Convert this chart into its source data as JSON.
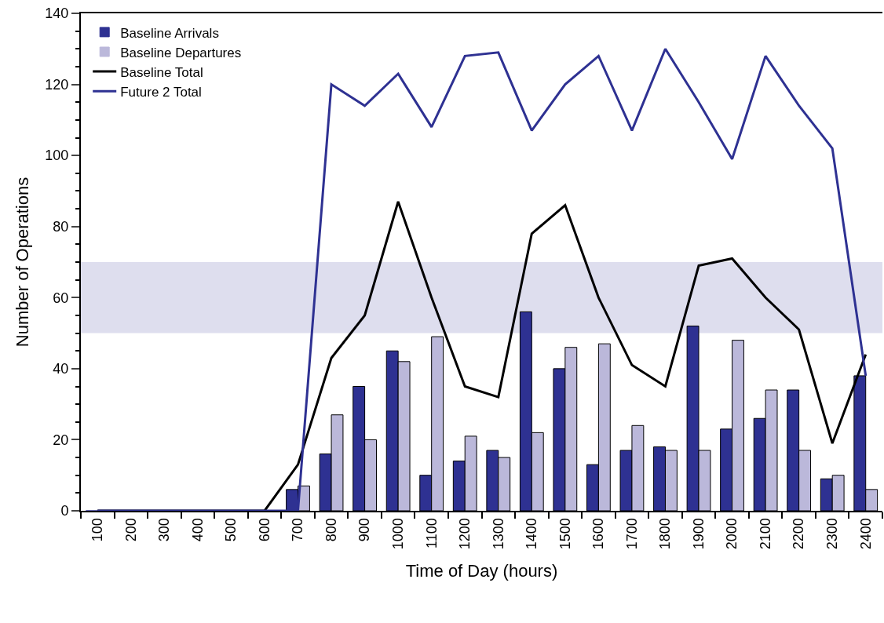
{
  "chart_data": {
    "type": "bar",
    "xlabel": "Time of Day (hours)",
    "ylabel": "Number of Operations",
    "categories": [
      "100",
      "200",
      "300",
      "400",
      "500",
      "600",
      "700",
      "800",
      "900",
      "1000",
      "1100",
      "1200",
      "1300",
      "1400",
      "1500",
      "1600",
      "1700",
      "1800",
      "1900",
      "2000",
      "2100",
      "2200",
      "2300",
      "2400"
    ],
    "series": [
      {
        "name": "Baseline Arrivals",
        "color": "#2e3192",
        "values": [
          0,
          0,
          0,
          0,
          0,
          0,
          6,
          16,
          35,
          45,
          10,
          14,
          17,
          56,
          40,
          13,
          17,
          18,
          52,
          23,
          26,
          34,
          9,
          38
        ]
      },
      {
        "name": "Baseline Departures",
        "color": "#bbb8da",
        "values": [
          0,
          0,
          0,
          0,
          0,
          0,
          7,
          27,
          20,
          42,
          49,
          21,
          15,
          22,
          46,
          47,
          24,
          17,
          17,
          48,
          34,
          17,
          10,
          6
        ]
      },
      {
        "name": "Baseline Total",
        "type": "line",
        "color": "#000000",
        "values": [
          0,
          0,
          0,
          0,
          0,
          0,
          13,
          43,
          55,
          87,
          60,
          35,
          32,
          78,
          86,
          60,
          41,
          35,
          69,
          71,
          60,
          51,
          19,
          44
        ]
      },
      {
        "name": "Future 2 Total",
        "type": "line",
        "color": "#2e3192",
        "values": [
          0,
          0,
          0,
          0,
          0,
          0,
          0,
          120,
          114,
          123,
          108,
          128,
          129,
          107,
          120,
          128,
          107,
          130,
          115,
          99,
          128,
          114,
          102,
          38
        ]
      }
    ],
    "ylim": [
      0,
      140
    ],
    "yticks": [
      0,
      20,
      40,
      60,
      80,
      100,
      120,
      140
    ],
    "bands": [
      {
        "axis": "y",
        "from": 50,
        "to": 70,
        "color": "#dedeee"
      }
    ],
    "grid": false,
    "legend": "top left"
  }
}
